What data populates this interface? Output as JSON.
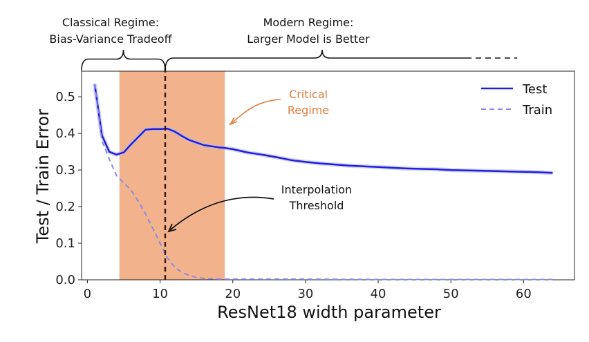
{
  "chart_data": {
    "type": "line",
    "xlabel": "ResNet18 width parameter",
    "ylabel": "Test / Train Error",
    "xlim": [
      -0.8,
      67
    ],
    "ylim": [
      0,
      0.57
    ],
    "xticks": [
      0,
      10,
      20,
      30,
      40,
      50,
      60
    ],
    "xtick_labels": [
      "0",
      "10",
      "20",
      "30",
      "40",
      "50",
      "60"
    ],
    "yticks": [
      0,
      0.1,
      0.2,
      0.3,
      0.4,
      0.5
    ],
    "ytick_labels": [
      "0.0",
      "0.1",
      "0.2",
      "0.3",
      "0.4",
      "0.5"
    ],
    "grid": false,
    "legend_position": "top-right",
    "series": [
      {
        "name": "Test",
        "color": "#1f1fd6",
        "style": "solid",
        "x": [
          1,
          2,
          3,
          4,
          5,
          6,
          7,
          8,
          9,
          10,
          11,
          12,
          13,
          14,
          15,
          16,
          17,
          18,
          19,
          20,
          22,
          24,
          26,
          28,
          30,
          32,
          34,
          36,
          38,
          40,
          42,
          44,
          46,
          48,
          50,
          52,
          54,
          56,
          58,
          60,
          62,
          64
        ],
        "y": [
          0.535,
          0.395,
          0.35,
          0.342,
          0.348,
          0.37,
          0.39,
          0.41,
          0.412,
          0.412,
          0.413,
          0.405,
          0.393,
          0.382,
          0.375,
          0.368,
          0.365,
          0.362,
          0.36,
          0.357,
          0.348,
          0.342,
          0.335,
          0.327,
          0.322,
          0.318,
          0.315,
          0.312,
          0.31,
          0.308,
          0.306,
          0.304,
          0.303,
          0.302,
          0.3,
          0.299,
          0.298,
          0.297,
          0.296,
          0.295,
          0.294,
          0.292
        ]
      },
      {
        "name": "Train",
        "color": "#8a8ae6",
        "style": "dashed",
        "x": [
          1,
          2,
          3,
          4,
          5,
          6,
          7,
          8,
          9,
          10,
          11,
          12,
          13,
          14,
          15,
          16,
          17,
          18,
          20,
          25,
          30,
          40,
          50,
          64
        ],
        "y": [
          0.535,
          0.38,
          0.33,
          0.285,
          0.265,
          0.245,
          0.215,
          0.18,
          0.14,
          0.1,
          0.06,
          0.035,
          0.02,
          0.012,
          0.007,
          0.004,
          0.003,
          0.002,
          0.002,
          0.002,
          0.002,
          0.001,
          0.001,
          0.001
        ]
      }
    ],
    "critical_band": {
      "x_start": 4.4,
      "x_end": 18.9,
      "color": "#f2b28c"
    },
    "interpolation_threshold_x": 10.7,
    "annotations": {
      "critical": {
        "line1": "Critical",
        "line2": "Regime",
        "color": "#e07b39"
      },
      "interpolation": {
        "line1": "Interpolation",
        "line2": "Threshold",
        "color": "#111111"
      }
    },
    "regimes": {
      "classical_line1": "Classical Regime:",
      "classical_line2": "Bias-Variance Tradeoff",
      "modern_line1": "Modern Regime:",
      "modern_line2": "Larger Model is Better"
    }
  }
}
